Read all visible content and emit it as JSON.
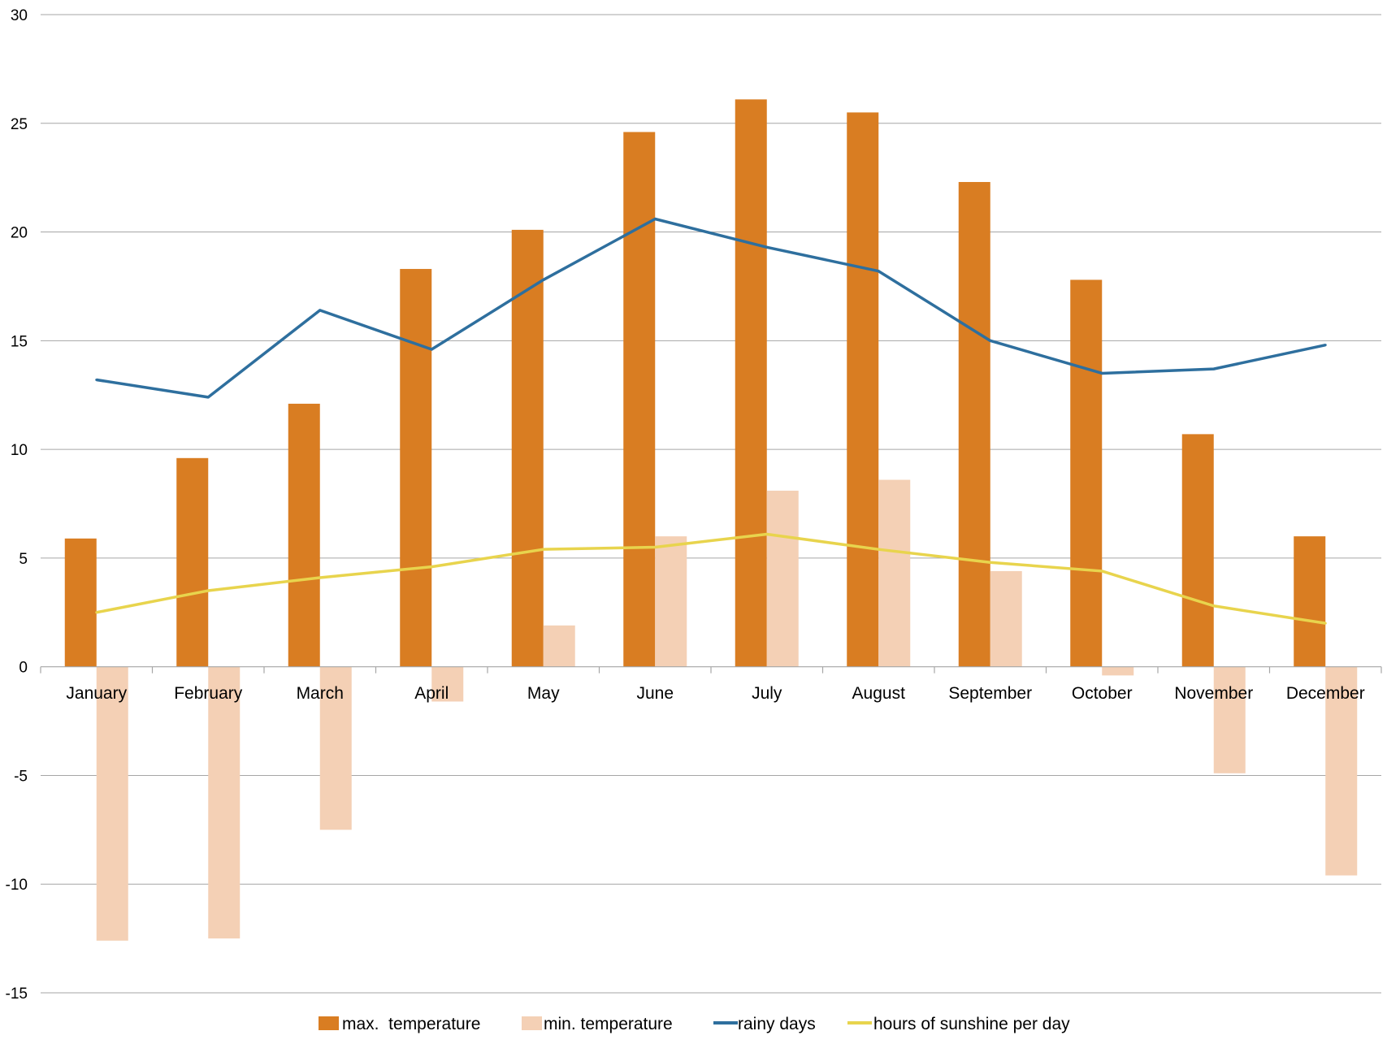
{
  "chart_data": {
    "type": "bar",
    "categories": [
      "January",
      "February",
      "March",
      "April",
      "May",
      "June",
      "July",
      "August",
      "September",
      "October",
      "November",
      "December"
    ],
    "series": [
      {
        "name": "max.  temperature",
        "kind": "bar",
        "color": "#d97d22",
        "values": [
          5.9,
          9.6,
          12.1,
          18.3,
          20.1,
          24.6,
          26.1,
          25.5,
          22.3,
          17.8,
          10.7,
          6.0
        ]
      },
      {
        "name": "min. temperature",
        "kind": "bar",
        "color": "#f4d0b5",
        "values": [
          -12.6,
          -12.5,
          -7.5,
          -1.6,
          1.9,
          6.0,
          8.1,
          8.6,
          4.4,
          -0.4,
          -4.9,
          -9.6
        ]
      },
      {
        "name": "rainy days",
        "kind": "line",
        "color": "#2e6f9e",
        "values": [
          13.2,
          12.4,
          16.4,
          14.6,
          17.8,
          20.6,
          19.3,
          18.2,
          15.0,
          13.5,
          13.7,
          14.8
        ]
      },
      {
        "name": "hours of sunshine per day",
        "kind": "line",
        "color": "#e8d44d",
        "values": [
          2.5,
          3.5,
          4.1,
          4.6,
          5.4,
          5.5,
          6.1,
          5.4,
          4.8,
          4.4,
          2.8,
          2.0
        ]
      }
    ],
    "ylim": [
      -15,
      30
    ],
    "yticks": [
      30,
      25,
      20,
      15,
      10,
      5,
      0,
      -5,
      -10,
      -15
    ],
    "grid": true,
    "legend_position": "bottom",
    "title": "",
    "xlabel": "",
    "ylabel": ""
  }
}
